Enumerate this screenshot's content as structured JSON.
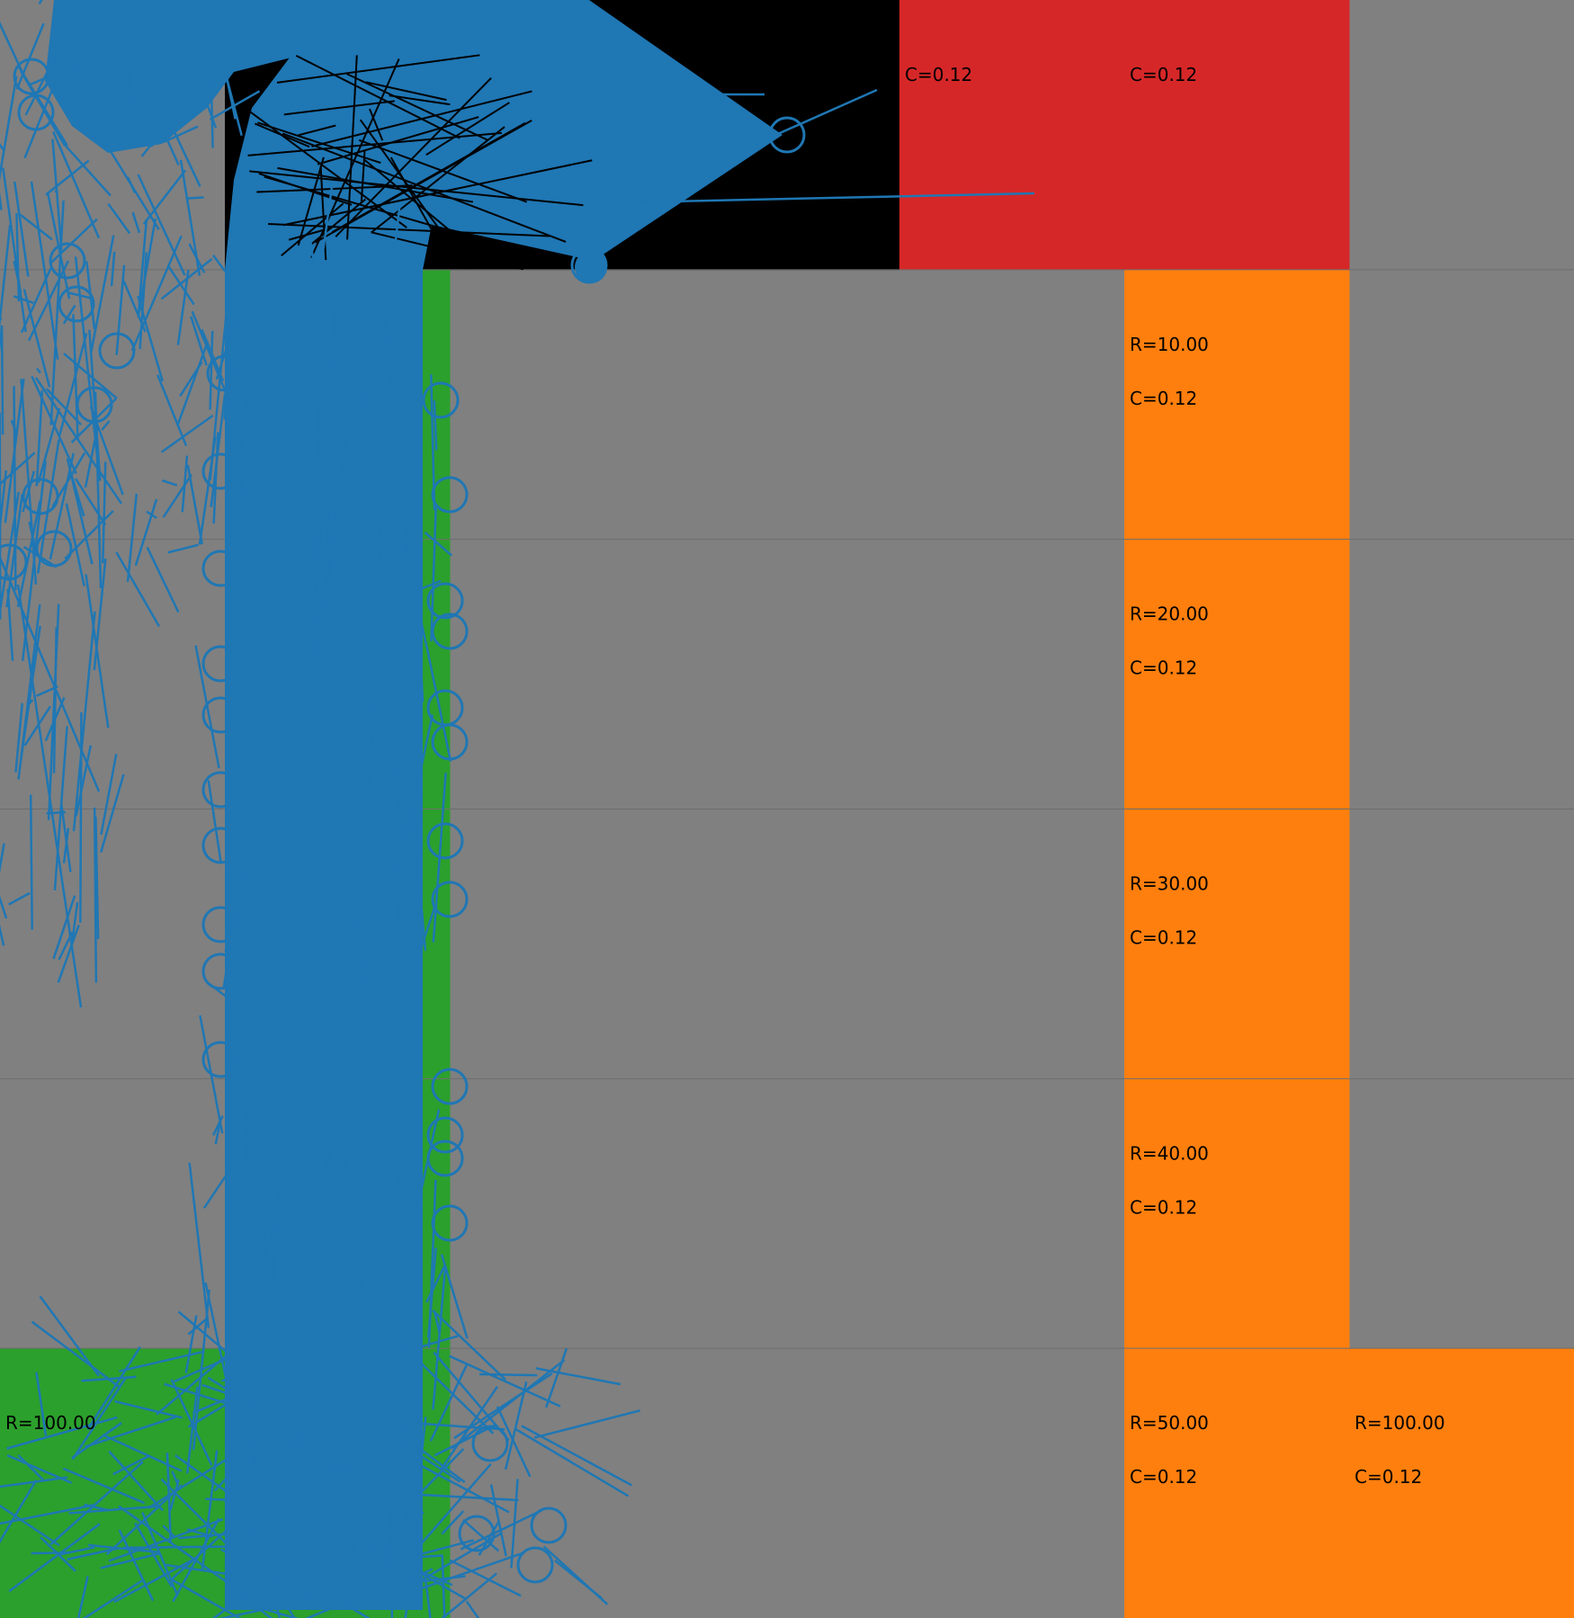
{
  "grid": {
    "rows": 6,
    "cols": 7,
    "colors": {
      "empty": "#808080",
      "wall": "#000000",
      "start": "#2ca02c",
      "goal": "#d62728",
      "reward": "#ff7f0e",
      "path": "#1f77b4",
      "gridline": "#6e6e6e"
    },
    "cells": [
      {
        "row": 0,
        "col": 1,
        "kind": "wall",
        "labels": []
      },
      {
        "row": 0,
        "col": 2,
        "kind": "wall",
        "labels": []
      },
      {
        "row": 0,
        "col": 3,
        "kind": "wall",
        "labels": []
      },
      {
        "row": 0,
        "col": 4,
        "kind": "goal",
        "labels": [
          "C=0.12"
        ]
      },
      {
        "row": 0,
        "col": 5,
        "kind": "goal",
        "labels": [
          "C=0.12"
        ]
      },
      {
        "row": 1,
        "col": 1,
        "kind": "start",
        "labels": []
      },
      {
        "row": 1,
        "col": 5,
        "kind": "reward",
        "labels": [
          "R=10.00",
          "C=0.12"
        ]
      },
      {
        "row": 2,
        "col": 1,
        "kind": "start",
        "labels": []
      },
      {
        "row": 2,
        "col": 5,
        "kind": "reward",
        "labels": [
          "R=20.00",
          "C=0.12"
        ]
      },
      {
        "row": 3,
        "col": 1,
        "kind": "start",
        "labels": []
      },
      {
        "row": 3,
        "col": 5,
        "kind": "reward",
        "labels": [
          "R=30.00",
          "C=0.12"
        ]
      },
      {
        "row": 4,
        "col": 1,
        "kind": "start",
        "labels": []
      },
      {
        "row": 4,
        "col": 5,
        "kind": "reward",
        "labels": [
          "R=40.00",
          "C=0.12"
        ]
      },
      {
        "row": 5,
        "col": 0,
        "kind": "start",
        "labels": [
          "R=100.00"
        ]
      },
      {
        "row": 5,
        "col": 1,
        "kind": "start",
        "labels": []
      },
      {
        "row": 5,
        "col": 5,
        "kind": "reward",
        "labels": [
          "R=50.00",
          "C=0.12"
        ]
      },
      {
        "row": 5,
        "col": 6,
        "kind": "reward",
        "labels": [
          "R=100.00",
          "C=0.12"
        ]
      }
    ]
  }
}
